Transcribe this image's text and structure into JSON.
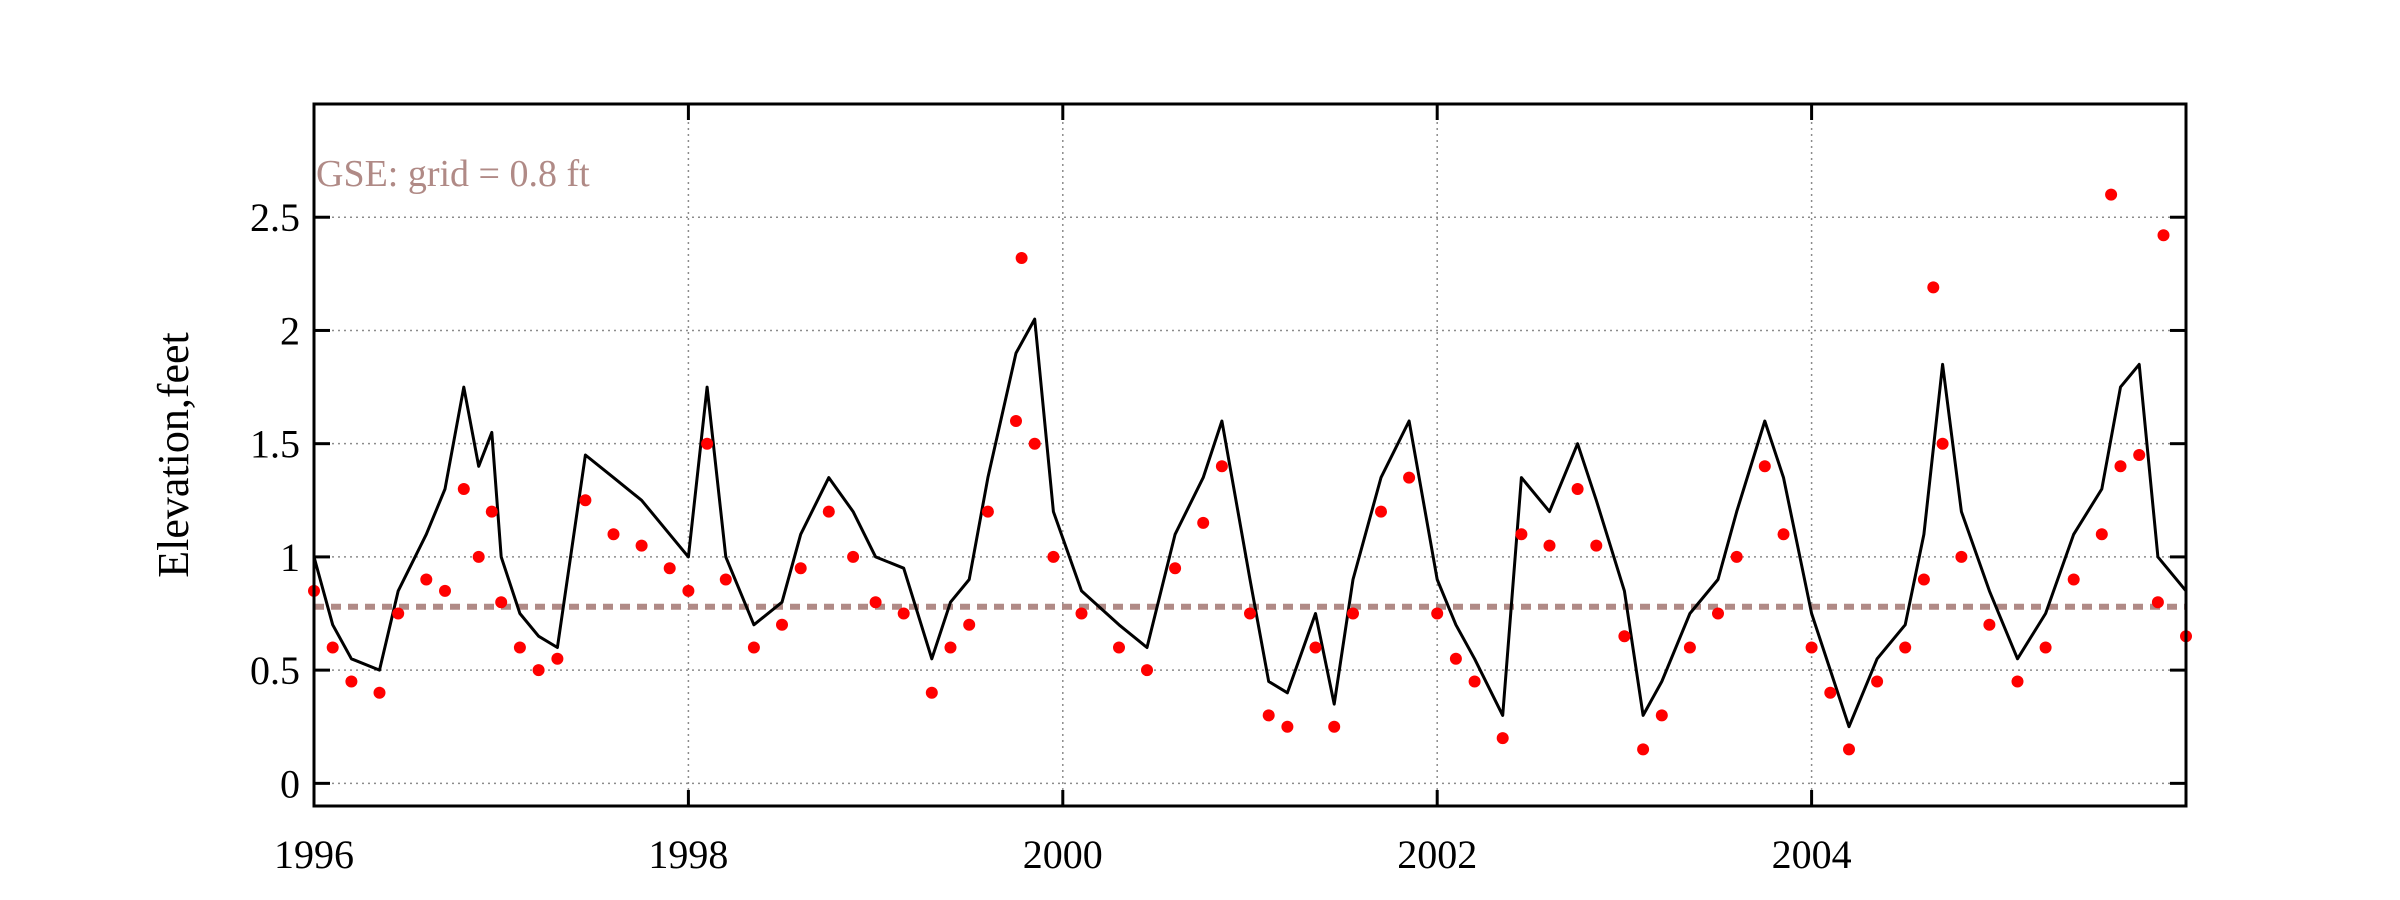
{
  "chart_data": {
    "type": "line",
    "title": "",
    "xlabel": "",
    "ylabel": "Elevation,feet",
    "xlim": [
      1996,
      2006
    ],
    "ylim": [
      -0.1,
      3.0
    ],
    "x_ticks": [
      1996,
      1998,
      2000,
      2002,
      2004
    ],
    "x_tick_labels": [
      "1996",
      "1998",
      "2000",
      "2002",
      "2004"
    ],
    "y_ticks": [
      0,
      0.5,
      1,
      1.5,
      2,
      2.5
    ],
    "y_tick_labels": [
      "0",
      "0.5",
      "1",
      "1.5",
      "2",
      "2.5"
    ],
    "grid": true,
    "annotation": "GSE: grid = 0.8 ft",
    "reference_line": {
      "y": 0.78,
      "color": "#b08a86",
      "style": "dashed"
    },
    "colors": {
      "simulated": "#000000",
      "observed": "#ff0000",
      "reference": "#b08a86",
      "grid": "#8c8c8c"
    },
    "series": [
      {
        "kind": "line",
        "x": [
          1996.0,
          1996.1,
          1996.2,
          1996.35,
          1996.45,
          1996.6,
          1996.7,
          1996.8,
          1996.88,
          1996.95,
          1997.0,
          1997.1,
          1997.2,
          1997.3,
          1997.45,
          1997.6,
          1997.75,
          1997.9,
          1998.0,
          1998.1,
          1998.2,
          1998.35,
          1998.5,
          1998.6,
          1998.75,
          1998.88,
          1999.0,
          1999.15,
          1999.3,
          1999.4,
          1999.5,
          1999.6,
          1999.75,
          1999.85,
          1999.95,
          2000.1,
          2000.3,
          2000.45,
          2000.6,
          2000.75,
          2000.85,
          2001.0,
          2001.1,
          2001.2,
          2001.35,
          2001.45,
          2001.55,
          2001.7,
          2001.85,
          2002.0,
          2002.1,
          2002.2,
          2002.35,
          2002.45,
          2002.6,
          2002.75,
          2002.85,
          2003.0,
          2003.1,
          2003.2,
          2003.35,
          2003.5,
          2003.6,
          2003.75,
          2003.85,
          2004.0,
          2004.1,
          2004.2,
          2004.35,
          2004.5,
          2004.6,
          2004.7,
          2004.8,
          2004.95,
          2005.1,
          2005.25,
          2005.4,
          2005.55,
          2005.65,
          2005.75,
          2005.85,
          2006.0
        ],
        "y": [
          1.0,
          0.7,
          0.55,
          0.5,
          0.85,
          1.1,
          1.3,
          1.75,
          1.4,
          1.55,
          1.0,
          0.75,
          0.65,
          0.6,
          1.45,
          1.35,
          1.25,
          1.1,
          1.0,
          1.75,
          1.0,
          0.7,
          0.8,
          1.1,
          1.35,
          1.2,
          1.0,
          0.95,
          0.55,
          0.8,
          0.9,
          1.35,
          1.9,
          2.05,
          1.2,
          0.85,
          0.7,
          0.6,
          1.1,
          1.35,
          1.6,
          0.9,
          0.45,
          0.4,
          0.75,
          0.35,
          0.9,
          1.35,
          1.6,
          0.9,
          0.7,
          0.55,
          0.3,
          1.35,
          1.2,
          1.5,
          1.25,
          0.85,
          0.3,
          0.45,
          0.75,
          0.9,
          1.2,
          1.6,
          1.35,
          0.75,
          0.5,
          0.25,
          0.55,
          0.7,
          1.1,
          1.85,
          1.2,
          0.85,
          0.55,
          0.75,
          1.1,
          1.3,
          1.75,
          1.85,
          1.0,
          0.85
        ]
      },
      {
        "kind": "scatter",
        "x": [
          1996.0,
          1996.1,
          1996.2,
          1996.35,
          1996.45,
          1996.6,
          1996.7,
          1996.8,
          1996.88,
          1996.95,
          1997.0,
          1997.1,
          1997.2,
          1997.3,
          1997.45,
          1997.6,
          1997.75,
          1997.9,
          1998.0,
          1998.1,
          1998.2,
          1998.35,
          1998.5,
          1998.6,
          1998.75,
          1998.88,
          1999.0,
          1999.15,
          1999.3,
          1999.4,
          1999.5,
          1999.6,
          1999.75,
          1999.85,
          1999.95,
          2000.1,
          2000.3,
          2000.45,
          2000.6,
          2000.75,
          2000.85,
          2001.0,
          2001.1,
          2001.2,
          2001.35,
          2001.45,
          2001.55,
          2001.7,
          2001.85,
          2002.0,
          2002.1,
          2002.2,
          2002.35,
          2002.45,
          2002.6,
          2002.75,
          2002.85,
          2003.0,
          2003.1,
          2003.2,
          2003.35,
          2003.5,
          2003.6,
          2003.75,
          2003.85,
          2004.0,
          2004.1,
          2004.2,
          2004.35,
          2004.5,
          2004.6,
          2004.7,
          2004.8,
          2004.95,
          2005.1,
          2005.25,
          2005.4,
          2005.55,
          2005.65,
          2005.75,
          2005.85,
          2006.0,
          1999.78,
          2004.65,
          2005.6,
          2005.88
        ],
        "y": [
          0.85,
          0.6,
          0.45,
          0.4,
          0.75,
          0.9,
          0.85,
          1.3,
          1.0,
          1.2,
          0.8,
          0.6,
          0.5,
          0.55,
          1.25,
          1.1,
          1.05,
          0.95,
          0.85,
          1.5,
          0.9,
          0.6,
          0.7,
          0.95,
          1.2,
          1.0,
          0.8,
          0.75,
          0.4,
          0.6,
          0.7,
          1.2,
          1.6,
          1.5,
          1.0,
          0.75,
          0.6,
          0.5,
          0.95,
          1.15,
          1.4,
          0.75,
          0.3,
          0.25,
          0.6,
          0.25,
          0.75,
          1.2,
          1.35,
          0.75,
          0.55,
          0.45,
          0.2,
          1.1,
          1.05,
          1.3,
          1.05,
          0.65,
          0.15,
          0.3,
          0.6,
          0.75,
          1.0,
          1.4,
          1.1,
          0.6,
          0.4,
          0.15,
          0.45,
          0.6,
          0.9,
          1.5,
          1.0,
          0.7,
          0.45,
          0.6,
          0.9,
          1.1,
          1.4,
          1.45,
          0.8,
          0.65,
          2.32,
          2.19,
          2.6,
          2.42
        ]
      }
    ]
  }
}
